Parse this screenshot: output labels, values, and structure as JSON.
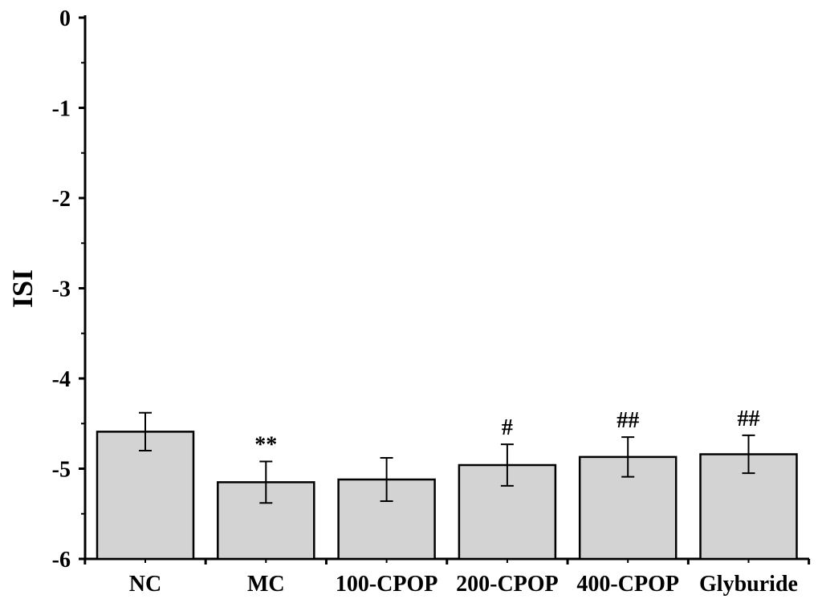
{
  "chart_data": {
    "type": "bar",
    "title": "",
    "xlabel": "",
    "ylabel": "ISI",
    "ylim": [
      -6,
      0
    ],
    "yticks": [
      0,
      -1,
      -2,
      -3,
      -4,
      -5,
      -6
    ],
    "ytick_labels": [
      "0",
      "-1",
      "-2",
      "-3",
      "-4",
      "-5",
      "-6"
    ],
    "categories": [
      "NC",
      "MC",
      "100-CPOP",
      "200-CPOP",
      "400-CPOP",
      "Glyburide"
    ],
    "values": [
      -4.59,
      -5.15,
      -5.12,
      -4.96,
      -4.87,
      -4.84
    ],
    "errors": [
      0.21,
      0.23,
      0.24,
      0.23,
      0.22,
      0.21
    ],
    "annotations": [
      "",
      "**",
      "",
      "#",
      "##",
      "##"
    ],
    "bar_color": "#d3d3d3",
    "edge_color": "#000000",
    "grid": false,
    "legend": "none"
  }
}
